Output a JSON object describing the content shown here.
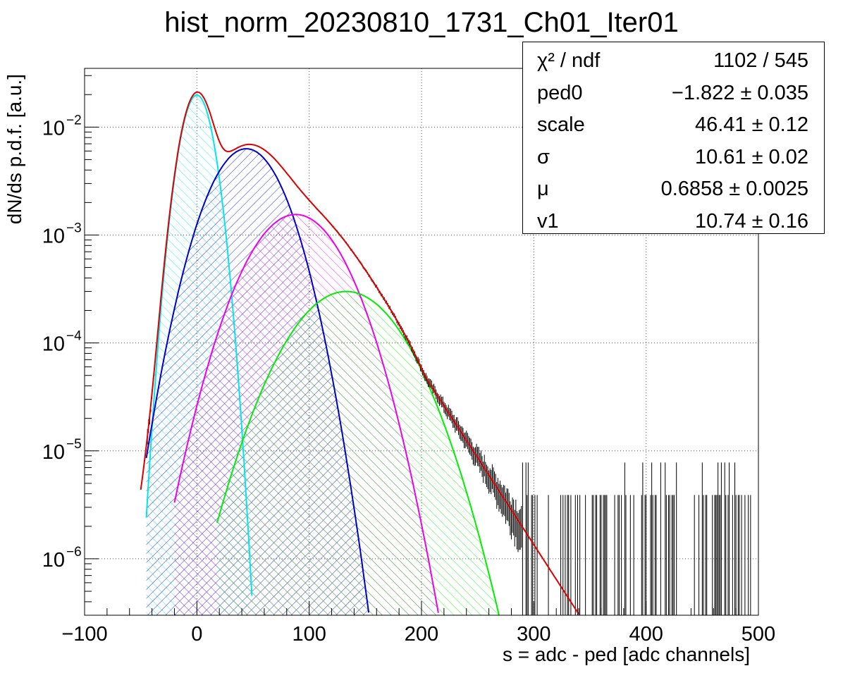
{
  "chart_data": {
    "type": "histogram-with-fit",
    "title": "hist_norm_20230810_1731_Ch01_Iter01",
    "xlabel": "s = adc - ped [adc channels]",
    "ylabel": "dN/ds p.d.f. [a.u.]",
    "xlim": [
      -100,
      500
    ],
    "ylim": [
      3e-07,
      0.035
    ],
    "yscale": "log",
    "grid": true,
    "xticks": [
      {
        "value": -100,
        "label": "−100"
      },
      {
        "value": 0,
        "label": "0"
      },
      {
        "value": 100,
        "label": "100"
      },
      {
        "value": 200,
        "label": "200"
      },
      {
        "value": 300,
        "label": "300"
      },
      {
        "value": 400,
        "label": "400"
      },
      {
        "value": 500,
        "label": "500"
      }
    ],
    "yticks": [
      {
        "value": 1e-06,
        "mantissa": "10",
        "exp": "−6"
      },
      {
        "value": 1e-05,
        "mantissa": "10",
        "exp": "−5"
      },
      {
        "value": 0.0001,
        "mantissa": "10",
        "exp": "−4"
      },
      {
        "value": 0.001,
        "mantissa": "10",
        "exp": "−3"
      },
      {
        "value": 0.01,
        "mantissa": "10",
        "exp": "−2"
      }
    ],
    "stats": [
      {
        "key": "χ² / ndf",
        "value": "1102 / 545"
      },
      {
        "key": "ped0",
        "value": "−1.822 ± 0.035"
      },
      {
        "key": "scale",
        "value": "46.41 ± 0.12"
      },
      {
        "key": "σ",
        "value": "10.61 ± 0.02"
      },
      {
        "key": "μ",
        "value": "0.6858 ± 0.0025"
      },
      {
        "key": "v1",
        "value": "10.74 ± 0.16"
      }
    ],
    "components": [
      {
        "color": "#00e5ee",
        "peak": 0,
        "amp": 0.0198,
        "sigma": 10.6,
        "xmin": -45,
        "xmax": 50
      },
      {
        "color": "#0000cc",
        "peak": 44,
        "amp": 0.0063,
        "sigma": 24.5,
        "xmin": -45,
        "xmax": 165
      },
      {
        "color": "#ee00ee",
        "peak": 88,
        "amp": 0.00155,
        "sigma": 30.8,
        "xmin": -20,
        "xmax": 235
      },
      {
        "color": "#00ee00",
        "peak": 133,
        "amp": 0.0003,
        "sigma": 36.6,
        "xmin": 18,
        "xmax": 285
      }
    ],
    "total_fit": {
      "color": "#dd0000",
      "xmin": -50,
      "xmax": 350
    },
    "colors": {
      "data": "#000000",
      "grid": "#555555"
    }
  }
}
